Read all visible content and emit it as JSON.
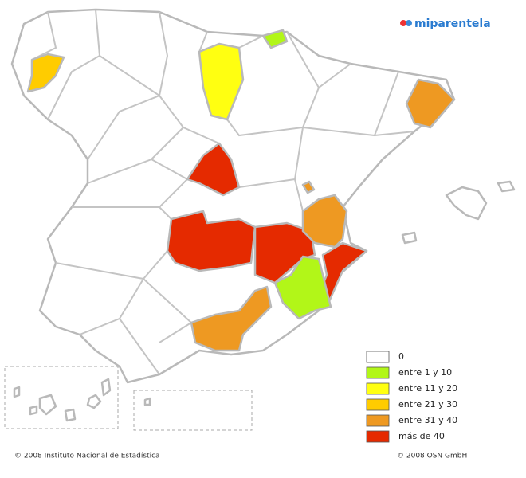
{
  "logo": "miparentela",
  "legend": [
    {
      "label": "0",
      "color": "#ffffff"
    },
    {
      "label": "entre 1 y 10",
      "color": "#b2f618"
    },
    {
      "label": "entre 11 y 20",
      "color": "#ffff11"
    },
    {
      "label": "entre 21 y 30",
      "color": "#ffcc00"
    },
    {
      "label": "entre 31 y 40",
      "color": "#ee9922"
    },
    {
      "label": "más de 40",
      "color": "#e52a00"
    }
  ],
  "footer": {
    "left": "© 2008 Instituto Nacional de Estadística",
    "right": "© 2008 OSN GmbH"
  }
}
